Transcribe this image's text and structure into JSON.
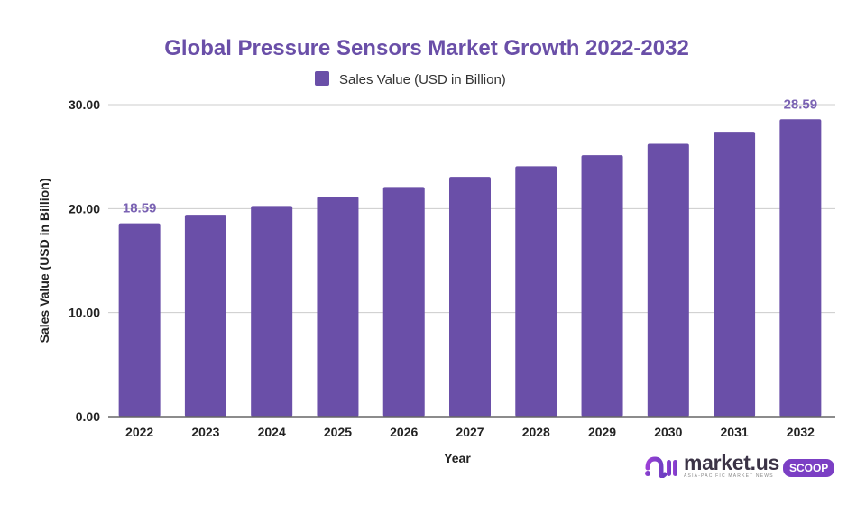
{
  "chart_data": {
    "type": "bar",
    "title": "Global Pressure Sensors Market Growth 2022-2032",
    "legend": [
      "Sales Value (USD in Billion)"
    ],
    "legend_position": "top",
    "xlabel": "Year",
    "ylabel": "Sales Value (USD in Billion)",
    "categories": [
      "2022",
      "2023",
      "2024",
      "2025",
      "2026",
      "2027",
      "2028",
      "2029",
      "2030",
      "2031",
      "2032"
    ],
    "series": [
      {
        "name": "Sales Value (USD in Billion)",
        "values": [
          18.59,
          19.41,
          20.26,
          21.15,
          22.08,
          23.05,
          24.07,
          25.13,
          26.23,
          27.39,
          28.59
        ],
        "color": "#6a4fa8"
      }
    ],
    "data_labels": [
      {
        "category": "2022",
        "text": "18.59"
      },
      {
        "category": "2032",
        "text": "28.59"
      }
    ],
    "ylim": [
      0,
      30
    ],
    "yticks": [
      0,
      10,
      20,
      30
    ],
    "ytick_labels": [
      "0.00",
      "10.00",
      "20.00",
      "30.00"
    ],
    "grid": true
  },
  "colors": {
    "bar": "#6a4fa8",
    "title": "#6a4fa8",
    "data_label": "#7a62b3",
    "grid": "#cccccc",
    "badge": "#7b3fc4"
  },
  "branding": {
    "name": "market.us",
    "tagline": "ASIA-PACIFIC MARKET NEWS",
    "badge": "SCOOP"
  }
}
